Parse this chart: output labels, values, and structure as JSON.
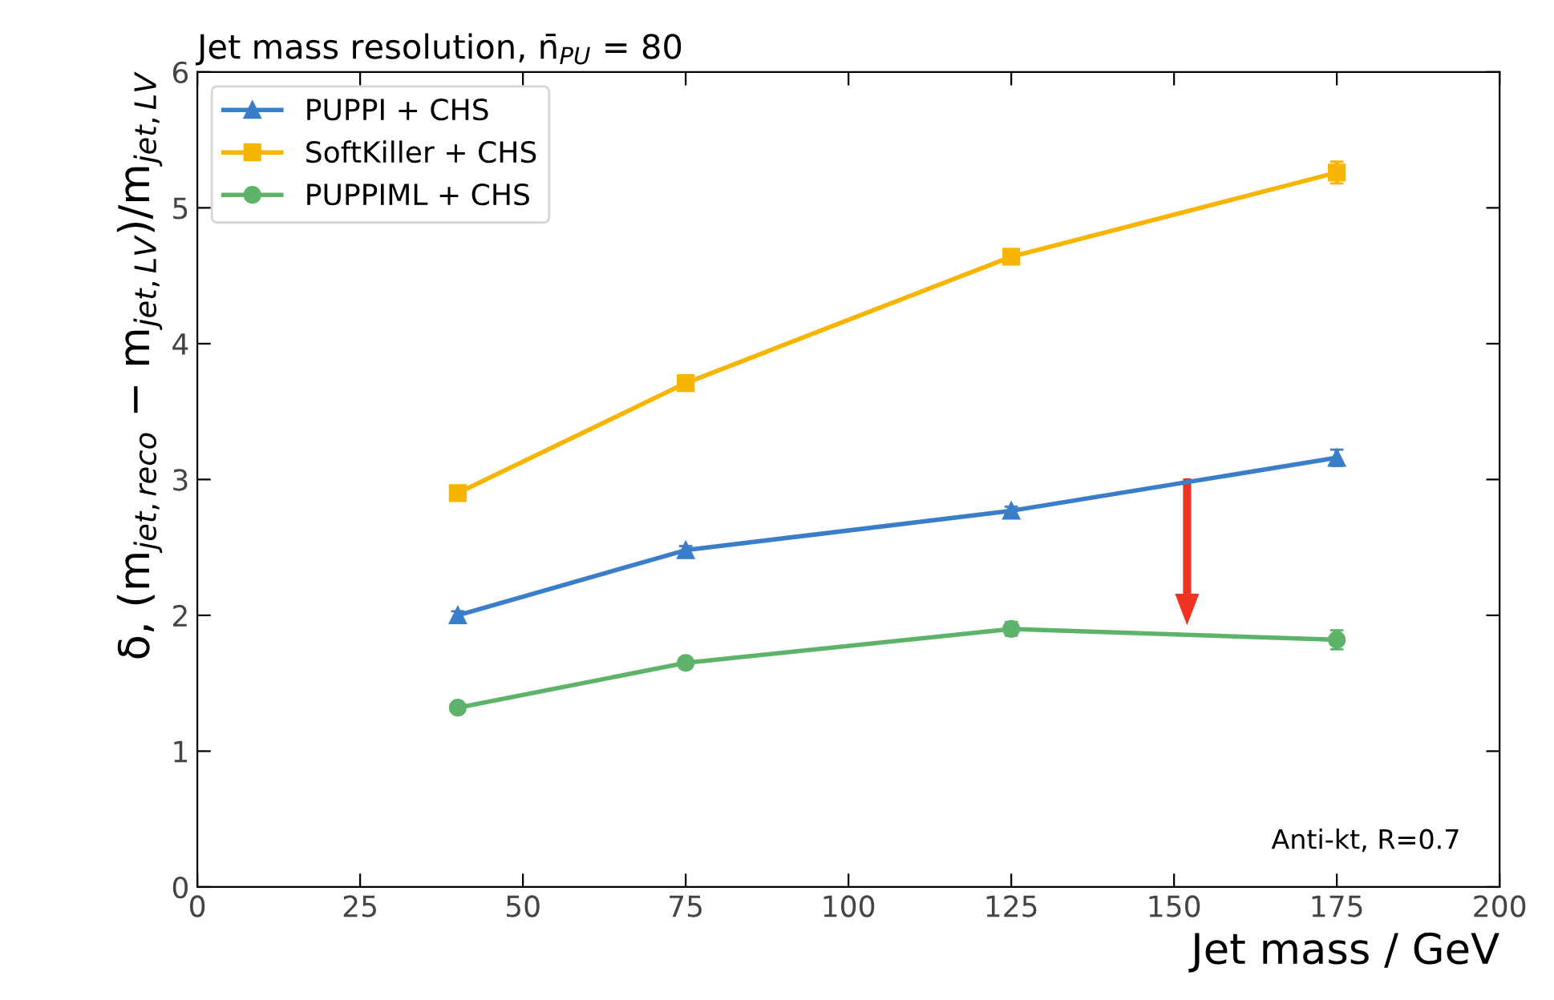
{
  "chart_data": {
    "type": "line",
    "title": "Jet mass resolution, n̄$_{PU}$ = 80",
    "xlabel": "Jet mass / GeV",
    "ylabel": "δ, (m$_{jet,reco}$ − m$_{jet,LV}$)/m$_{jet,LV}$",
    "x": [
      40,
      75,
      125,
      175
    ],
    "series": [
      {
        "name": "PUPPI + CHS",
        "color": "#3a7dc9",
        "marker": "triangle",
        "values": [
          2.0,
          2.48,
          2.77,
          3.16
        ],
        "errors": [
          0.03,
          0.03,
          0.03,
          0.06
        ]
      },
      {
        "name": "SoftKiller + CHS",
        "color": "#f7b500",
        "marker": "square",
        "values": [
          2.9,
          3.71,
          4.64,
          5.26
        ],
        "errors": [
          0.03,
          0.03,
          0.04,
          0.08
        ]
      },
      {
        "name": "PUPPIML + CHS",
        "color": "#5eb36b",
        "marker": "circle",
        "values": [
          1.32,
          1.65,
          1.9,
          1.82
        ],
        "errors": [
          0.03,
          0.04,
          0.05,
          0.07
        ]
      }
    ],
    "xlim": [
      0,
      200
    ],
    "ylim": [
      0,
      6
    ],
    "xticks": [
      0,
      25,
      50,
      75,
      100,
      125,
      150,
      175,
      200
    ],
    "yticks": [
      0,
      1,
      2,
      3,
      4,
      5,
      6
    ],
    "annotations": [
      "Anti-kt, R=0.7"
    ],
    "legend": "top left",
    "grid": false
  }
}
